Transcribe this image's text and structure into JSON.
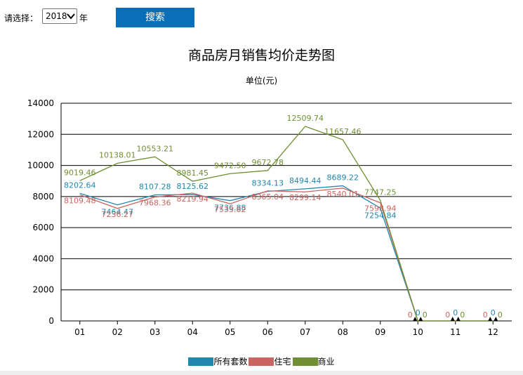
{
  "toolbar": {
    "select_label": "请选择：",
    "year_value": "2018",
    "year_suffix": "年",
    "search_label": "搜索"
  },
  "chart_data": {
    "type": "line",
    "title": "商品房月销售均价走势图",
    "subtitle": "单位(元)",
    "categories": [
      "01",
      "02",
      "03",
      "04",
      "05",
      "06",
      "07",
      "08",
      "09",
      "10",
      "11",
      "12"
    ],
    "ylim": [
      0,
      14000
    ],
    "yticks": [
      0,
      2000,
      4000,
      6000,
      8000,
      10000,
      12000,
      14000
    ],
    "grid": true,
    "legend": "bottom-center",
    "series": [
      {
        "name": "所有套数",
        "color": "#1f87ad",
        "values": [
          8202.64,
          7464.47,
          8107.28,
          8125.62,
          7736.88,
          8334.13,
          8494.44,
          8689.22,
          7254.84,
          0,
          0,
          0
        ],
        "labels": [
          "8202.64",
          "7464.47",
          "8107.28",
          "8125.62",
          "7736.88",
          "8334.13",
          "8494.44",
          "8689.22",
          "7254.84",
          "0",
          "0",
          "0"
        ]
      },
      {
        "name": "住宅",
        "color": "#c96460",
        "values": [
          8109.48,
          7236.27,
          7968.36,
          8219.94,
          7533.82,
          8365.04,
          8299.14,
          8540.01,
          7598.94,
          0,
          0,
          0
        ],
        "labels": [
          "8109.48",
          "7236.27",
          "7968.36",
          "8219.94",
          "7533.82",
          "8365.04",
          "8299.14",
          "8540.01",
          "7598.94",
          "0",
          "0",
          "0"
        ]
      },
      {
        "name": "商业",
        "color": "#6f8f32",
        "values": [
          9019.46,
          10138.01,
          10553.21,
          8981.45,
          9472.5,
          9672.78,
          12509.74,
          11657.46,
          7747.25,
          0,
          0,
          0
        ],
        "labels": [
          "9019.46",
          "10138.01",
          "10553.21",
          "8981.45",
          "9472.50",
          "9672.78",
          "12509.74",
          "11657.46",
          "7747.25",
          "0",
          "0",
          "0"
        ]
      }
    ]
  }
}
